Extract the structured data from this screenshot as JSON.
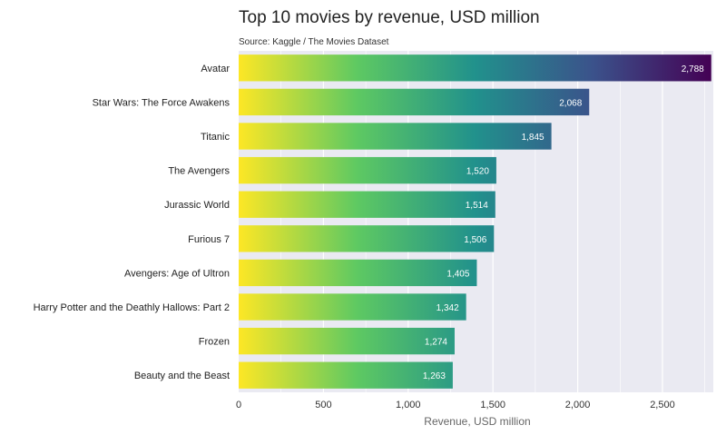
{
  "chart_data": {
    "type": "bar",
    "orientation": "horizontal",
    "title": "Top 10 movies by revenue, USD million",
    "subtitle": "Source: Kaggle / The Movies Dataset",
    "xlabel": "Revenue, USD million",
    "ylabel": "",
    "xlim": [
      0,
      2800
    ],
    "xticks": [
      0,
      500,
      1000,
      1500,
      2000,
      2500
    ],
    "xtick_labels": [
      "0",
      "500",
      "1,000",
      "1,500",
      "2,000",
      "2,500"
    ],
    "grid": true,
    "categories": [
      "Avatar",
      "Star Wars: The Force Awakens",
      "Titanic",
      "The Avengers",
      "Jurassic World",
      "Furious 7",
      "Avengers: Age of Ultron",
      "Harry Potter and the Deathly Hallows: Part 2",
      "Frozen",
      "Beauty and the Beast"
    ],
    "values": [
      2788,
      2068,
      1845,
      1520,
      1514,
      1506,
      1405,
      1342,
      1274,
      1263
    ],
    "value_labels": [
      "2,788",
      "2,068",
      "1,845",
      "1,520",
      "1,514",
      "1,506",
      "1,405",
      "1,342",
      "1,274",
      "1,263"
    ],
    "colors": {
      "background": "#eaeaf2",
      "grid": "#ffffff",
      "gradient": [
        "#fde725",
        "#5ec962",
        "#21918c",
        "#3b528b",
        "#440154"
      ]
    }
  }
}
